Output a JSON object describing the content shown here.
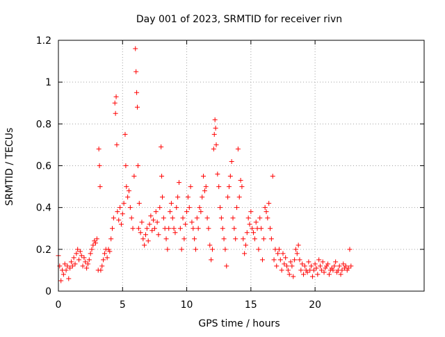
{
  "chart_data": {
    "type": "scatter",
    "title": "Day 001 of 2023, SRMTID for receiver rivn",
    "xlabel": "GPS time / hours",
    "ylabel": "SRMTID / TECUs",
    "xlim": [
      0,
      28.5
    ],
    "ylim": [
      0,
      1.2
    ],
    "x_ticks": [
      0,
      5,
      10,
      15,
      20
    ],
    "x_tick_labels": [
      "0",
      "5",
      "10",
      "15",
      "20"
    ],
    "y_ticks": [
      0,
      0.2,
      0.4,
      0.6,
      0.8,
      1.0,
      1.2
    ],
    "y_tick_labels": [
      "0",
      "0.2",
      "0.4",
      "0.6",
      "0.8",
      "1",
      "1.2"
    ],
    "grid": true,
    "marker": "+",
    "color": "#ff0000",
    "series": [
      {
        "name": "SRMTID",
        "x": [
          0.0,
          0.1,
          0.2,
          0.3,
          0.4,
          0.5,
          0.6,
          0.7,
          0.8,
          0.9,
          1.0,
          1.1,
          1.2,
          1.3,
          1.4,
          1.5,
          1.6,
          1.7,
          1.8,
          1.9,
          2.0,
          2.1,
          2.2,
          2.3,
          2.4,
          2.5,
          2.6,
          2.7,
          2.8,
          2.9,
          3.0,
          3.1,
          3.15,
          3.2,
          3.25,
          3.3,
          3.4,
          3.5,
          3.6,
          3.7,
          3.8,
          3.9,
          4.0,
          4.1,
          4.2,
          4.3,
          4.4,
          4.45,
          4.5,
          4.55,
          4.6,
          4.7,
          4.8,
          4.9,
          5.0,
          5.1,
          5.2,
          5.25,
          5.3,
          5.4,
          5.5,
          5.6,
          5.7,
          5.8,
          5.9,
          6.0,
          6.05,
          6.1,
          6.15,
          6.2,
          6.25,
          6.3,
          6.4,
          6.5,
          6.6,
          6.7,
          6.8,
          6.9,
          7.0,
          7.1,
          7.2,
          7.3,
          7.4,
          7.5,
          7.6,
          7.7,
          7.8,
          7.9,
          8.0,
          8.05,
          8.1,
          8.2,
          8.3,
          8.4,
          8.5,
          8.6,
          8.7,
          8.8,
          8.9,
          9.0,
          9.1,
          9.2,
          9.3,
          9.4,
          9.5,
          9.6,
          9.7,
          9.8,
          9.9,
          10.0,
          10.1,
          10.2,
          10.3,
          10.4,
          10.5,
          10.6,
          10.7,
          10.8,
          10.9,
          11.0,
          11.1,
          11.2,
          11.3,
          11.4,
          11.5,
          11.6,
          11.7,
          11.8,
          11.9,
          12.0,
          12.1,
          12.15,
          12.2,
          12.25,
          12.3,
          12.4,
          12.5,
          12.6,
          12.7,
          12.8,
          12.9,
          13.0,
          13.1,
          13.2,
          13.3,
          13.4,
          13.5,
          13.6,
          13.7,
          13.8,
          13.9,
          14.0,
          14.1,
          14.2,
          14.3,
          14.4,
          14.5,
          14.6,
          14.7,
          14.8,
          14.9,
          15.0,
          15.1,
          15.2,
          15.3,
          15.4,
          15.5,
          15.6,
          15.7,
          15.8,
          15.9,
          16.0,
          16.1,
          16.2,
          16.3,
          16.4,
          16.5,
          16.6,
          16.7,
          16.8,
          16.9,
          17.0,
          17.1,
          17.2,
          17.3,
          17.4,
          17.5,
          17.6,
          17.7,
          17.8,
          17.9,
          18.0,
          18.1,
          18.2,
          18.3,
          18.4,
          18.5,
          18.6,
          18.7,
          18.8,
          18.9,
          19.0,
          19.1,
          19.2,
          19.3,
          19.4,
          19.5,
          19.6,
          19.7,
          19.8,
          19.9,
          20.0,
          20.1,
          20.2,
          20.3,
          20.4,
          20.5,
          20.6,
          20.7,
          20.8,
          20.9,
          21.0,
          21.1,
          21.2,
          21.3,
          21.4,
          21.5,
          21.6,
          21.7,
          21.8,
          21.9,
          22.0,
          22.1,
          22.2,
          22.3,
          22.4,
          22.5,
          22.6,
          22.7,
          22.8
        ],
        "y": [
          0.17,
          0.12,
          0.05,
          0.1,
          0.08,
          0.13,
          0.1,
          0.12,
          0.06,
          0.11,
          0.14,
          0.12,
          0.16,
          0.13,
          0.18,
          0.2,
          0.15,
          0.19,
          0.17,
          0.12,
          0.16,
          0.14,
          0.11,
          0.13,
          0.15,
          0.18,
          0.2,
          0.22,
          0.24,
          0.23,
          0.25,
          0.1,
          0.68,
          0.6,
          0.5,
          0.1,
          0.12,
          0.15,
          0.18,
          0.2,
          0.16,
          0.2,
          0.19,
          0.25,
          0.3,
          0.35,
          0.9,
          0.85,
          0.93,
          0.7,
          0.38,
          0.34,
          0.4,
          0.32,
          0.37,
          0.42,
          0.75,
          0.6,
          0.5,
          0.45,
          0.48,
          0.4,
          0.35,
          0.3,
          0.55,
          1.16,
          1.05,
          0.95,
          0.88,
          0.6,
          0.3,
          0.42,
          0.28,
          0.33,
          0.25,
          0.22,
          0.27,
          0.3,
          0.24,
          0.32,
          0.36,
          0.29,
          0.34,
          0.3,
          0.38,
          0.33,
          0.27,
          0.4,
          0.69,
          0.55,
          0.45,
          0.35,
          0.3,
          0.25,
          0.2,
          0.3,
          0.38,
          0.42,
          0.35,
          0.3,
          0.28,
          0.4,
          0.45,
          0.52,
          0.3,
          0.2,
          0.35,
          0.25,
          0.32,
          0.38,
          0.45,
          0.4,
          0.5,
          0.33,
          0.3,
          0.25,
          0.2,
          0.35,
          0.3,
          0.4,
          0.38,
          0.45,
          0.55,
          0.48,
          0.5,
          0.35,
          0.3,
          0.22,
          0.15,
          0.2,
          0.68,
          0.75,
          0.82,
          0.78,
          0.7,
          0.56,
          0.5,
          0.4,
          0.35,
          0.3,
          0.25,
          0.2,
          0.12,
          0.45,
          0.5,
          0.55,
          0.62,
          0.35,
          0.3,
          0.25,
          0.4,
          0.68,
          0.45,
          0.53,
          0.5,
          0.25,
          0.18,
          0.22,
          0.28,
          0.35,
          0.32,
          0.38,
          0.3,
          0.28,
          0.25,
          0.33,
          0.3,
          0.2,
          0.35,
          0.3,
          0.15,
          0.25,
          0.4,
          0.38,
          0.35,
          0.42,
          0.3,
          0.25,
          0.55,
          0.15,
          0.2,
          0.12,
          0.18,
          0.2,
          0.15,
          0.1,
          0.18,
          0.13,
          0.16,
          0.12,
          0.1,
          0.08,
          0.14,
          0.12,
          0.07,
          0.15,
          0.2,
          0.18,
          0.22,
          0.15,
          0.1,
          0.13,
          0.08,
          0.12,
          0.1,
          0.09,
          0.14,
          0.1,
          0.12,
          0.07,
          0.1,
          0.13,
          0.11,
          0.08,
          0.15,
          0.12,
          0.1,
          0.14,
          0.09,
          0.11,
          0.12,
          0.13,
          0.08,
          0.1,
          0.11,
          0.1,
          0.12,
          0.14,
          0.09,
          0.1,
          0.12,
          0.08,
          0.1,
          0.13,
          0.11,
          0.12,
          0.1,
          0.11,
          0.2,
          0.12
        ]
      }
    ]
  }
}
